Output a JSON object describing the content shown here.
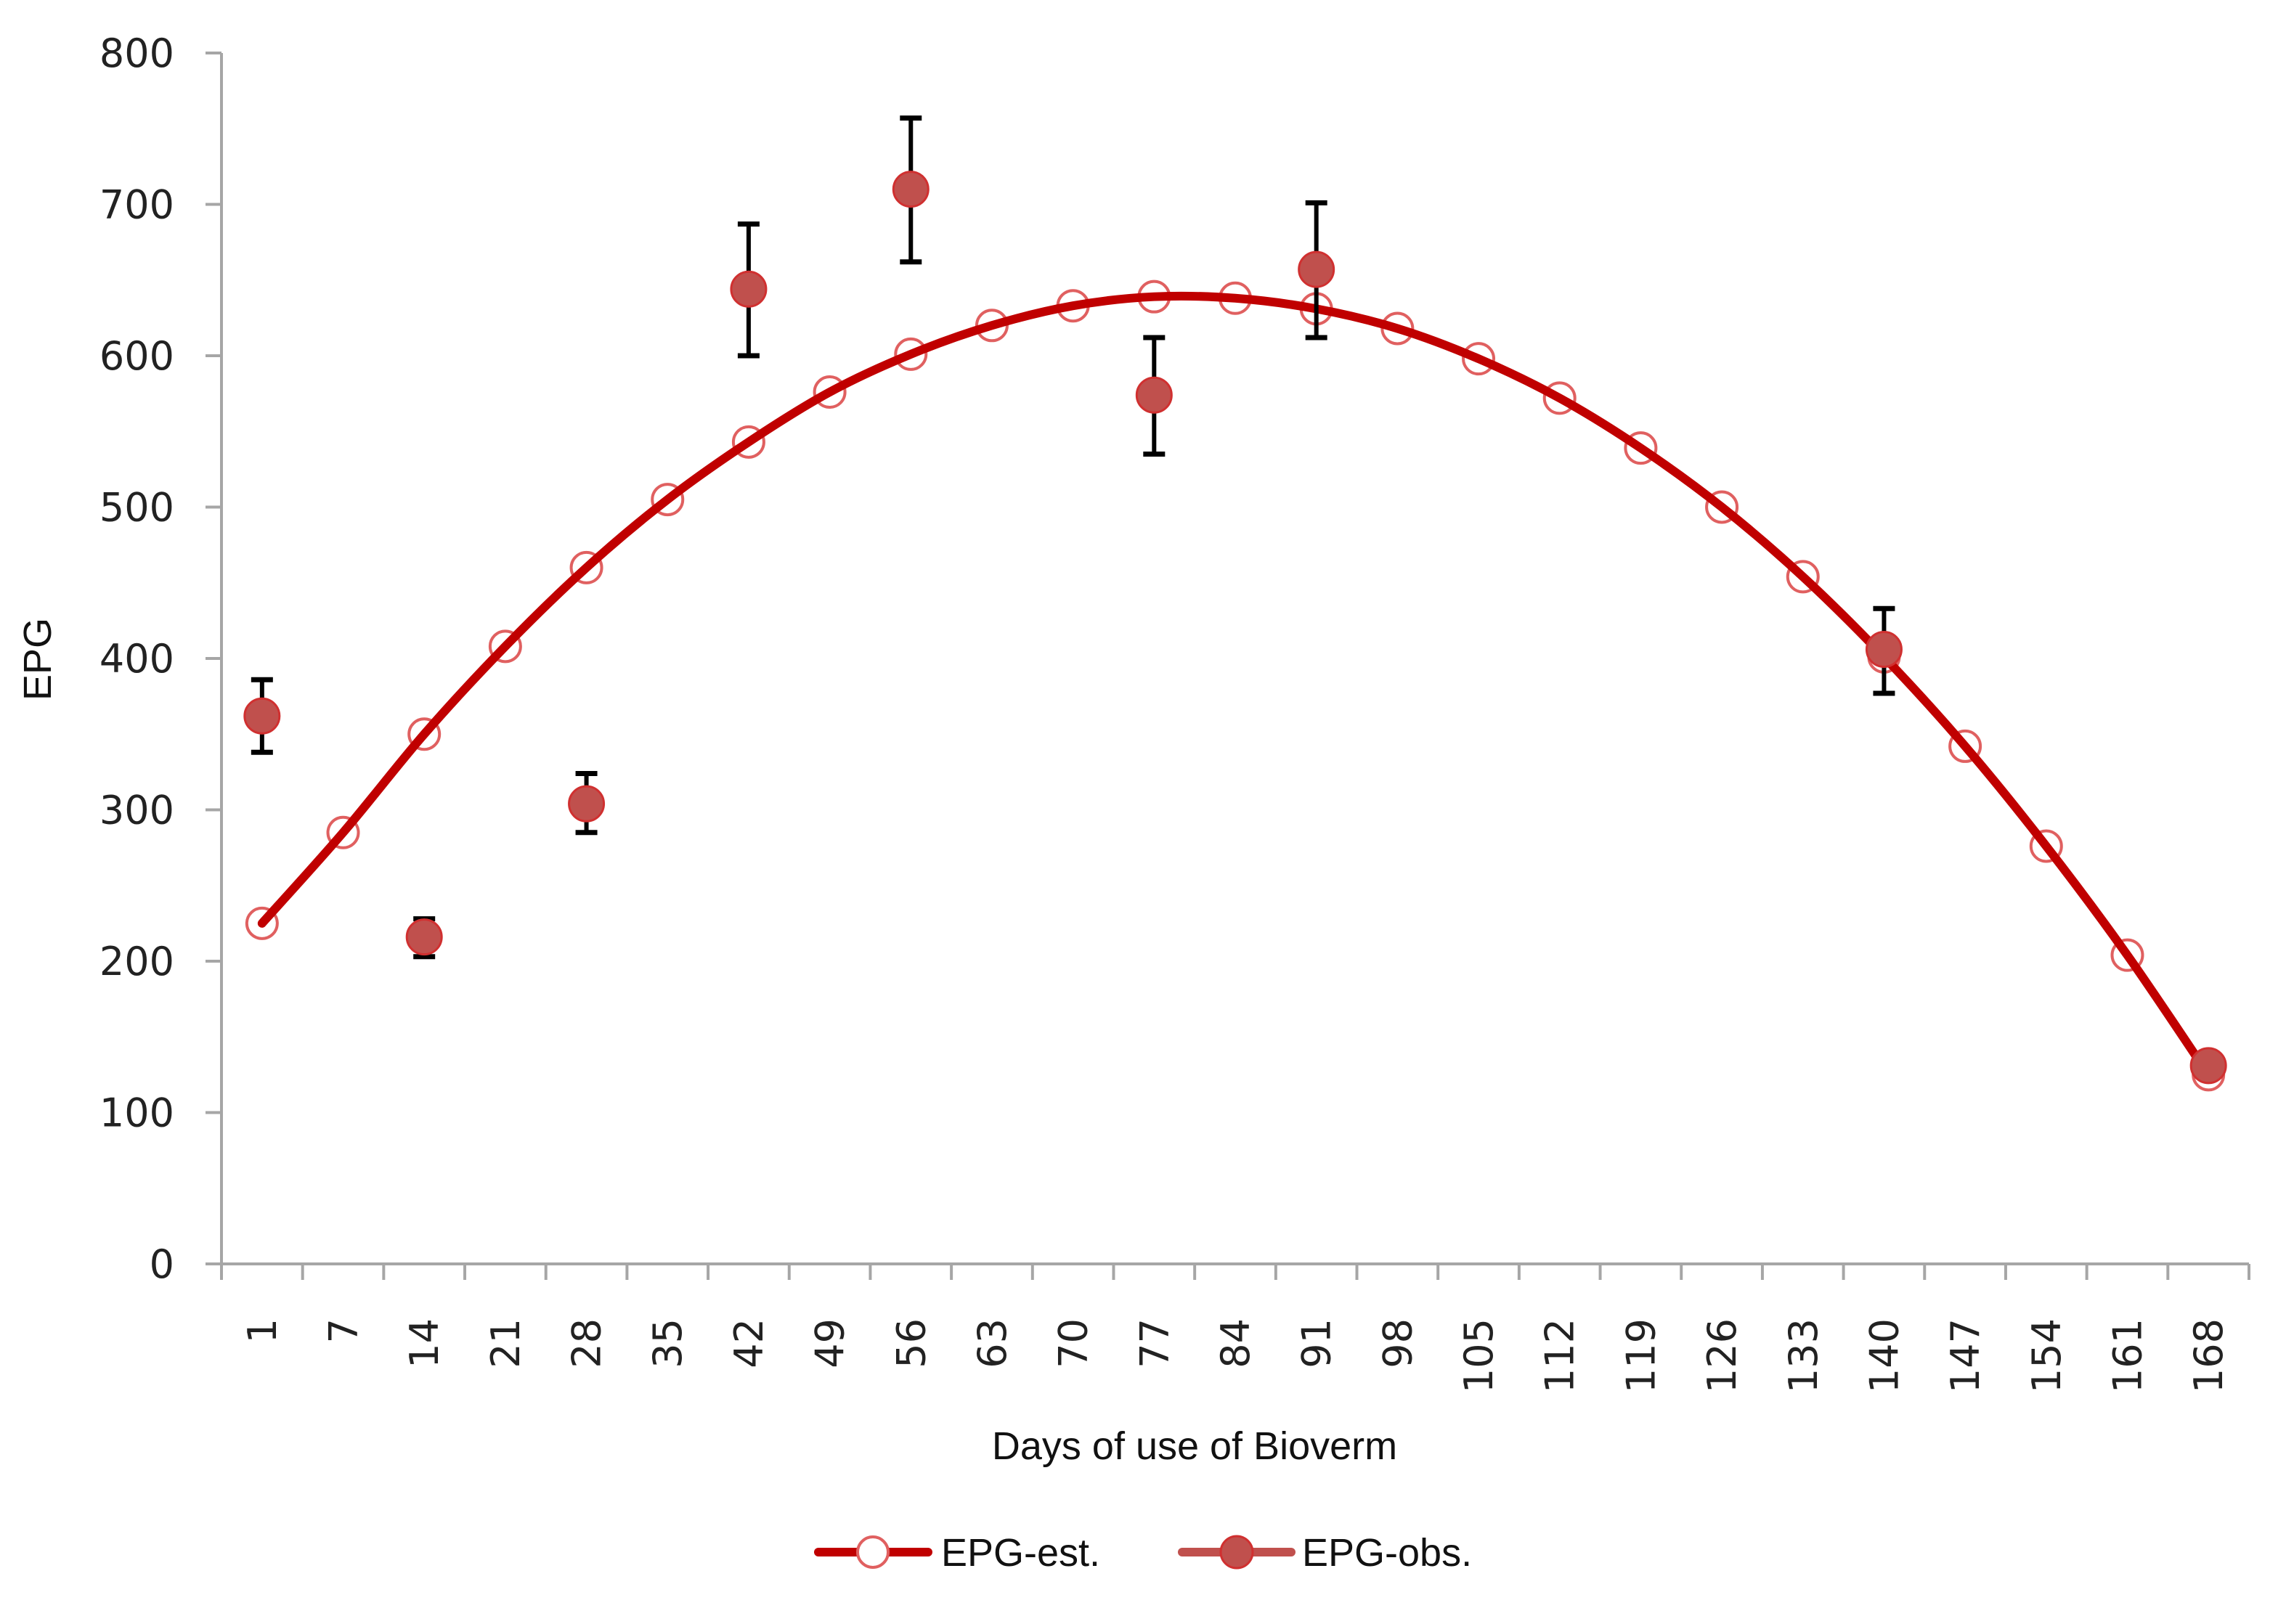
{
  "chart_data": {
    "type": "line",
    "title": "",
    "xlabel": "Days of use of Bioverm",
    "ylabel": "EPG",
    "ylim": [
      0,
      800
    ],
    "yticks": [
      0,
      100,
      200,
      300,
      400,
      500,
      600,
      700,
      800
    ],
    "grid": false,
    "legend_position": "bottom",
    "categories": [
      1,
      7,
      14,
      21,
      28,
      35,
      42,
      49,
      56,
      63,
      70,
      77,
      84,
      91,
      98,
      105,
      112,
      119,
      126,
      133,
      140,
      147,
      154,
      161,
      168
    ],
    "series": [
      {
        "name": "EPG-est.",
        "style": "smooth line with hollow circle markers",
        "color": "#c00000",
        "values": [
          225,
          285,
          350,
          408,
          460,
          505,
          543,
          576,
          601,
          620,
          633,
          639,
          638,
          631,
          618,
          598,
          572,
          539,
          500,
          454,
          401,
          342,
          276,
          204,
          125
        ]
      },
      {
        "name": "EPG-obs.",
        "style": "filled circle markers with error bars",
        "color": "#c0504d",
        "points": [
          {
            "x": 1,
            "y": 362,
            "err_low": 338,
            "err_high": 386
          },
          {
            "x": 14,
            "y": 216,
            "err_low": 203,
            "err_high": 228
          },
          {
            "x": 28,
            "y": 304,
            "err_low": 285,
            "err_high": 324
          },
          {
            "x": 42,
            "y": 644,
            "err_low": 600,
            "err_high": 687
          },
          {
            "x": 56,
            "y": 710,
            "err_low": 662,
            "err_high": 757
          },
          {
            "x": 77,
            "y": 574,
            "err_low": 535,
            "err_high": 612
          },
          {
            "x": 91,
            "y": 657,
            "err_low": 612,
            "err_high": 701
          },
          {
            "x": 140,
            "y": 406,
            "err_low": 377,
            "err_high": 433
          },
          {
            "x": 168,
            "y": 131,
            "err_low": 131,
            "err_high": 131
          }
        ]
      }
    ]
  },
  "legend": {
    "items": [
      {
        "label": "EPG-est.",
        "marker": "hollow-circle",
        "line_color": "#c00000"
      },
      {
        "label": "EPG-obs.",
        "marker": "filled-circle",
        "line_color": "#c0504d"
      }
    ]
  },
  "colors": {
    "est_line": "#c00000",
    "est_marker": "#e06060",
    "obs_fill": "#c0504d",
    "obs_edge": "#d03030",
    "error_bar": "#000000",
    "axis": "#a6a6a6"
  }
}
